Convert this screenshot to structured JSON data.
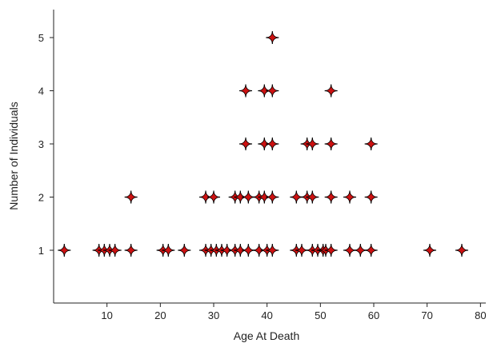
{
  "chart_data": {
    "type": "scatter",
    "title": "",
    "xlabel": "Age At Death",
    "ylabel": "Number of Individuals",
    "xlim": [
      0,
      81
    ],
    "ylim": [
      0,
      5.5
    ],
    "xticks": [
      10,
      20,
      30,
      40,
      50,
      60,
      70,
      80
    ],
    "yticks": [
      1,
      2,
      3,
      4,
      5
    ],
    "grid": false,
    "legend": "none",
    "marker_color": "#cc1111",
    "marker_outline": "#000000",
    "series": [
      {
        "points": [
          [
            2,
            1
          ],
          [
            8.5,
            1
          ],
          [
            9.5,
            1
          ],
          [
            10.5,
            1
          ],
          [
            11.5,
            1
          ],
          [
            14.5,
            1
          ],
          [
            20.5,
            1
          ],
          [
            21.5,
            1
          ],
          [
            24.5,
            1
          ],
          [
            28.5,
            1
          ],
          [
            29.5,
            1
          ],
          [
            30.5,
            1
          ],
          [
            31.5,
            1
          ],
          [
            32.5,
            1
          ],
          [
            34,
            1
          ],
          [
            35,
            1
          ],
          [
            36.5,
            1
          ],
          [
            38.5,
            1
          ],
          [
            40,
            1
          ],
          [
            41,
            1
          ],
          [
            45.5,
            1
          ],
          [
            46.5,
            1
          ],
          [
            48.5,
            1
          ],
          [
            49.5,
            1
          ],
          [
            50.5,
            1
          ],
          [
            51,
            1
          ],
          [
            52,
            1
          ],
          [
            55.5,
            1
          ],
          [
            57.5,
            1
          ],
          [
            59.5,
            1
          ],
          [
            70.5,
            1
          ],
          [
            76.5,
            1
          ],
          [
            14.5,
            2
          ],
          [
            28.5,
            2
          ],
          [
            30,
            2
          ],
          [
            34,
            2
          ],
          [
            35,
            2
          ],
          [
            36.5,
            2
          ],
          [
            38.5,
            2
          ],
          [
            39.5,
            2
          ],
          [
            41,
            2
          ],
          [
            45.5,
            2
          ],
          [
            47.5,
            2
          ],
          [
            48.5,
            2
          ],
          [
            52,
            2
          ],
          [
            55.5,
            2
          ],
          [
            59.5,
            2
          ],
          [
            36,
            3
          ],
          [
            39.5,
            3
          ],
          [
            41,
            3
          ],
          [
            47.5,
            3
          ],
          [
            48.5,
            3
          ],
          [
            52,
            3
          ],
          [
            59.5,
            3
          ],
          [
            36,
            4
          ],
          [
            39.5,
            4
          ],
          [
            41,
            4
          ],
          [
            52,
            4
          ],
          [
            41,
            5
          ]
        ]
      }
    ]
  }
}
